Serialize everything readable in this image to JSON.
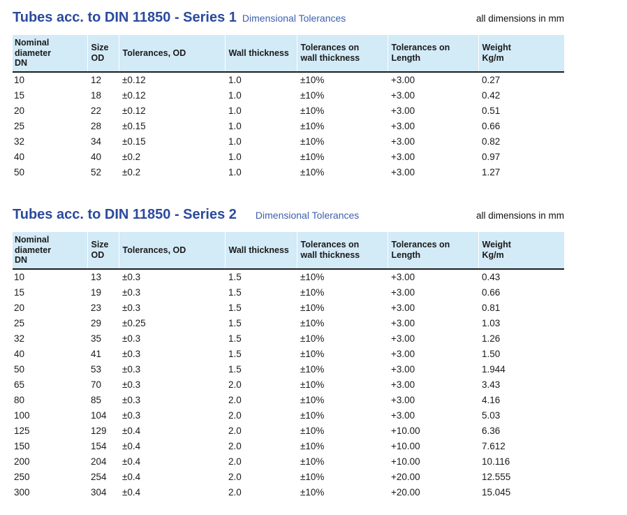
{
  "colors": {
    "title_blue": "#2b4a9e",
    "subtitle_blue": "#3d5fae",
    "header_bg": "#d3eaf7",
    "header_rule": "#1c1c1c"
  },
  "series1": {
    "title": "Tubes acc. to DIN 11850 - Series 1",
    "subtitle": "Dimensional Tolerances",
    "note": "all dimensions in mm",
    "columns": [
      "Nominal\ndiameter\nDN",
      "Size\nOD",
      "Tolerances, OD",
      "Wall thickness",
      "Tolerances on\nwall thickness",
      "Tolerances on\nLength",
      "Weight\nKg/m"
    ],
    "rows": [
      [
        "10",
        "12",
        "±0.12",
        "1.0",
        "±10%",
        "+3.00",
        "0.27"
      ],
      [
        "15",
        "18",
        "±0.12",
        "1.0",
        "±10%",
        "+3.00",
        "0.42"
      ],
      [
        "20",
        "22",
        "±0.12",
        "1.0",
        "±10%",
        "+3.00",
        "0.51"
      ],
      [
        "25",
        "28",
        "±0.15",
        "1.0",
        "±10%",
        "+3.00",
        "0.66"
      ],
      [
        "32",
        "34",
        "±0.15",
        "1.0",
        "±10%",
        "+3.00",
        "0.82"
      ],
      [
        "40",
        "40",
        "±0.2",
        "1.0",
        "±10%",
        "+3.00",
        "0.97"
      ],
      [
        "50",
        "52",
        "±0.2",
        "1.0",
        "±10%",
        "+3.00",
        "1.27"
      ]
    ]
  },
  "series2": {
    "title": "Tubes acc. to DIN 11850 - Series 2",
    "subtitle": "Dimensional Tolerances",
    "note": "all dimensions in mm",
    "columns": [
      "Nominal\ndiameter\nDN",
      "Size\nOD",
      "Tolerances, OD",
      "Wall thickness",
      "Tolerances on\nwall thickness",
      "Tolerances on\nLength",
      "Weight\nKg/m"
    ],
    "rows": [
      [
        "10",
        "13",
        "±0.3",
        "1.5",
        "±10%",
        "+3.00",
        "0.43"
      ],
      [
        "15",
        "19",
        "±0.3",
        "1.5",
        "±10%",
        "+3.00",
        "0.66"
      ],
      [
        "20",
        "23",
        "±0.3",
        "1.5",
        "±10%",
        "+3.00",
        "0.81"
      ],
      [
        "25",
        "29",
        "±0.25",
        "1.5",
        "±10%",
        "+3.00",
        "1.03"
      ],
      [
        "32",
        "35",
        "±0.3",
        "1.5",
        "±10%",
        "+3.00",
        "1.26"
      ],
      [
        "40",
        "41",
        "±0.3",
        "1.5",
        "±10%",
        "+3.00",
        "1.50"
      ],
      [
        "50",
        "53",
        "±0.3",
        "1.5",
        "±10%",
        "+3.00",
        "1.944"
      ],
      [
        "65",
        "70",
        "±0.3",
        "2.0",
        "±10%",
        "+3.00",
        "3.43"
      ],
      [
        "80",
        "85",
        "±0.3",
        "2.0",
        "±10%",
        "+3.00",
        "4.16"
      ],
      [
        "100",
        "104",
        "±0.3",
        "2.0",
        "±10%",
        "+3.00",
        "5.03"
      ],
      [
        "125",
        "129",
        "±0.4",
        "2.0",
        "±10%",
        "+10.00",
        "6.36"
      ],
      [
        "150",
        "154",
        "±0.4",
        "2.0",
        "±10%",
        "+10.00",
        "7.612"
      ],
      [
        "200",
        "204",
        "±0.4",
        "2.0",
        "±10%",
        "+10.00",
        "10.116"
      ],
      [
        "250",
        "254",
        "±0.4",
        "2.0",
        "±10%",
        "+20.00",
        "12.555"
      ],
      [
        "300",
        "304",
        "±0.4",
        "2.0",
        "±10%",
        "+20.00",
        "15.045"
      ]
    ]
  }
}
